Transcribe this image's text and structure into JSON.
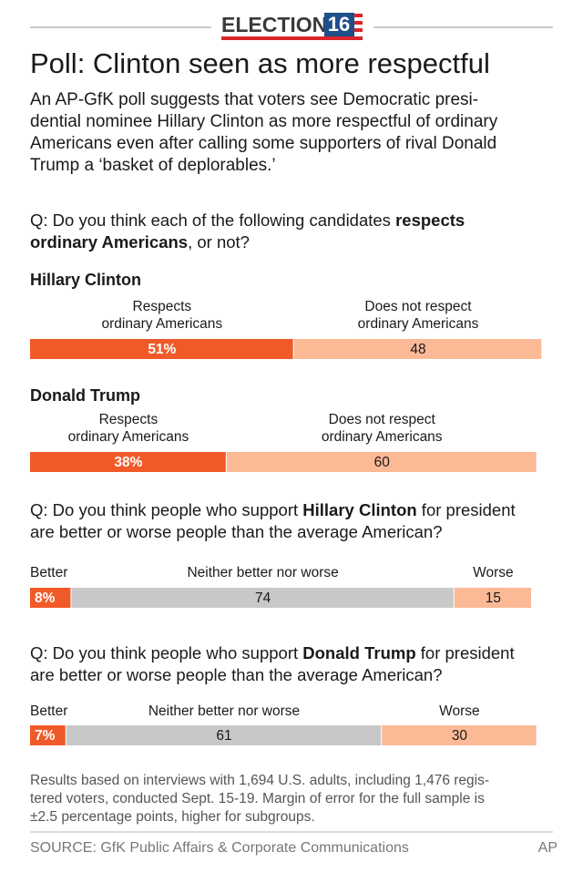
{
  "header": {
    "logo_word": "ELECTION",
    "logo_year": "16",
    "title": "Poll: Clinton seen as more respectful",
    "intro": [
      "An AP-GfK poll suggests that voters see Democratic presi-",
      "dential nominee Hillary Clinton as more respectful of ordinary",
      "Americans even after calling some supporters of rival Donald",
      "Trump a ‘basket of deplorables.’"
    ]
  },
  "questions": [
    [
      [
        {
          "text": "Q: Do you think each of the following candidates ",
          "bold": false
        },
        {
          "text": "respects",
          "bold": true
        }
      ],
      [
        {
          "text": "ordinary Americans",
          "bold": true
        },
        {
          "text": ", or not?",
          "bold": false
        }
      ]
    ],
    [
      [
        {
          "text": "Q: Do you think people who support ",
          "bold": false
        },
        {
          "text": "Hillary Clinton",
          "bold": true
        },
        {
          "text": " for president",
          "bold": false
        }
      ],
      [
        {
          "text": "are better or worse people than the average American?",
          "bold": false
        }
      ]
    ],
    [
      [
        {
          "text": "Q: Do you think people who support ",
          "bold": false
        },
        {
          "text": "Donald Trump",
          "bold": true
        },
        {
          "text": " for president",
          "bold": false
        }
      ],
      [
        {
          "text": "are better or worse people than the average American?",
          "bold": false
        }
      ]
    ]
  ],
  "chart_data": [
    {
      "type": "stacked-bar",
      "title": "Hillary Clinton",
      "categories": [
        [
          "Respects",
          "ordinary Americans"
        ],
        [
          "Does not respect",
          "ordinary Americans"
        ]
      ],
      "values": [
        51,
        48
      ],
      "value_labels": [
        "51%",
        "48"
      ],
      "colors": [
        "#f05a28",
        "#fbb996"
      ]
    },
    {
      "type": "stacked-bar",
      "title": "Donald Trump",
      "categories": [
        [
          "Respects",
          "ordinary Americans"
        ],
        [
          "Does not respect",
          "ordinary Americans"
        ]
      ],
      "values": [
        38,
        60
      ],
      "value_labels": [
        "38%",
        "60"
      ],
      "colors": [
        "#f05a28",
        "#fbb996"
      ]
    },
    {
      "type": "stacked-bar",
      "categories": [
        [
          "Better"
        ],
        [
          "Neither better nor worse"
        ],
        [
          "Worse"
        ]
      ],
      "values": [
        8,
        74,
        15
      ],
      "value_labels": [
        "8%",
        "74",
        "15"
      ],
      "colors": [
        "#f05a28",
        "#c8c8c8",
        "#fbb996"
      ]
    },
    {
      "type": "stacked-bar",
      "categories": [
        [
          "Better"
        ],
        [
          "Neither better nor worse"
        ],
        [
          "Worse"
        ]
      ],
      "values": [
        7,
        61,
        30
      ],
      "value_labels": [
        "7%",
        "61",
        "30"
      ],
      "colors": [
        "#f05a28",
        "#c8c8c8",
        "#fbb996"
      ]
    }
  ],
  "notes": [
    "Results based on interviews with 1,694 U.S. adults, including 1,476 regis-",
    "tered voters, conducted Sept. 15-19. Margin of error for the full sample is",
    "±2.5 percentage points, higher for subgroups."
  ],
  "source": "SOURCE: GfK Public Affairs & Corporate Communications",
  "credit": "AP"
}
